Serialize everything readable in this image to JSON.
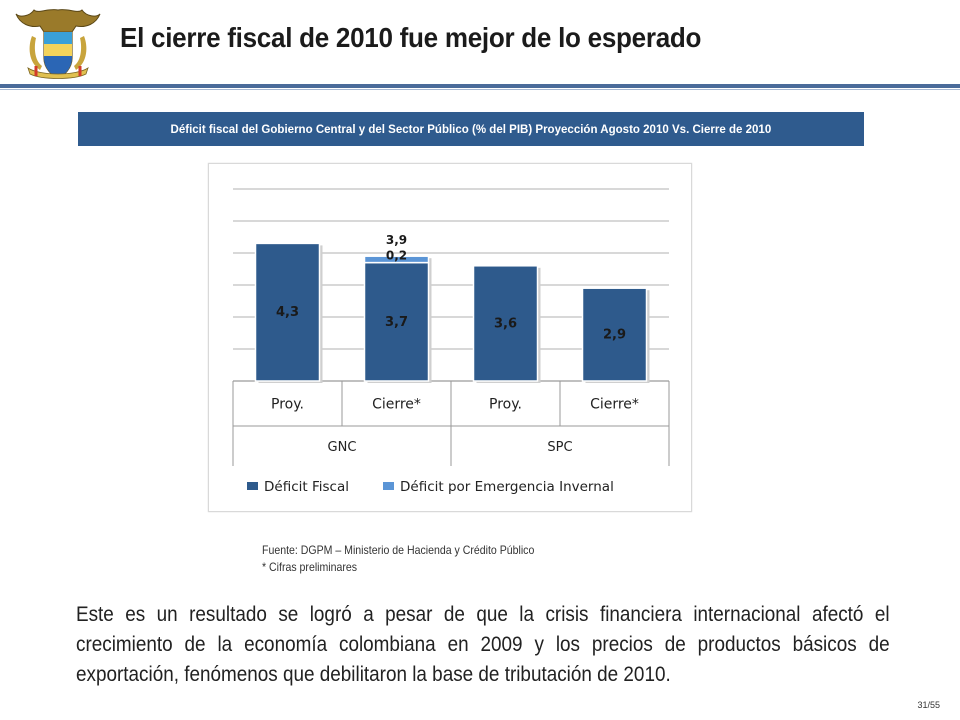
{
  "slide": {
    "title": "El cierre fiscal de 2010 fue mejor de lo esperado",
    "banner": "Déficit fiscal del Gobierno Central y del Sector Público (% del PIB) Proyección Agosto 2010 Vs. Cierre de 2010",
    "source_line1": "Fuente: DGPM – Ministerio de Hacienda y Crédito Público",
    "source_line2": "* Cifras preliminares",
    "body": "Este es un resultado se logró a pesar de que la crisis financiera internacional afectó el crecimiento de la economía colombiana en 2009 y los precios de productos básicos de exportación, fenómenos que debilitaron la base de tributación de 2010.",
    "page_number": "31/55"
  },
  "colors": {
    "banner_bg": "#2f5b8e",
    "deficit_fiscal": "#2e5a8c",
    "emergencia_invernal": "#5b95d6"
  },
  "chart_data": {
    "type": "bar",
    "stacked": true,
    "categories": [
      "Proy.",
      "Cierre*",
      "Proy.",
      "Cierre*"
    ],
    "groups": [
      {
        "label": "GNC",
        "categories": [
          "Proy.",
          "Cierre*"
        ]
      },
      {
        "label": "SPC",
        "categories": [
          "Proy.",
          "Cierre*"
        ]
      }
    ],
    "series": [
      {
        "name": "Déficit Fiscal",
        "values": [
          4.3,
          3.7,
          3.6,
          2.9
        ],
        "labels": [
          "4,3",
          "3,7",
          "3,6",
          "2,9"
        ],
        "color": "#2e5a8c"
      },
      {
        "name": "Déficit por Emergencia Invernal",
        "values": [
          0,
          0.2,
          0,
          0
        ],
        "labels": [
          "",
          "0,2",
          "",
          ""
        ],
        "color": "#5b95d6"
      }
    ],
    "totals": {
      "labels": [
        "",
        "3,9",
        "",
        ""
      ]
    },
    "ylim": [
      0,
      6
    ],
    "grid": true,
    "legend": "bottom"
  }
}
